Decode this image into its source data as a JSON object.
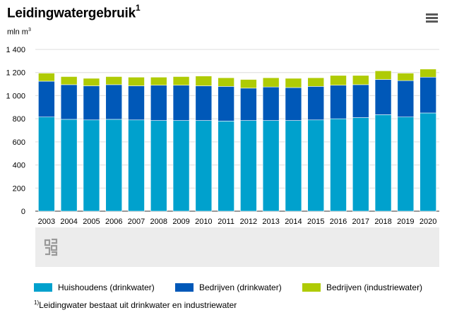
{
  "header": {
    "title": "Leidingwatergebruik",
    "title_sup": "1",
    "unit": "mln m",
    "unit_sup": "3"
  },
  "menu_icon": "hamburger-menu-icon",
  "logo_icon": "cbs-logo-icon",
  "legend": [
    {
      "label": "Huishoudens (drinkwater)",
      "color": "#00a1cd"
    },
    {
      "label": "Bedrijven (drinkwater)",
      "color": "#0058b8"
    },
    {
      "label": "Bedrijven (industriewater)",
      "color": "#afcb05"
    }
  ],
  "footnote": {
    "sup": "1)",
    "text": "Leidingwater bestaat uit drinkwater en industriewater"
  },
  "chart_data": {
    "type": "bar",
    "stacked": true,
    "title": "Leidingwatergebruik",
    "ylabel": "mln m3",
    "ylim": [
      0,
      1400
    ],
    "yticks": [
      "0",
      "200",
      "400",
      "600",
      "800",
      "1 000",
      "1 200",
      "1 400"
    ],
    "categories": [
      "2003",
      "2004",
      "2005",
      "2006",
      "2007",
      "2008",
      "2009",
      "2010",
      "2011",
      "2012",
      "2013",
      "2014",
      "2015",
      "2016",
      "2017",
      "2018",
      "2019",
      "2020"
    ],
    "series": [
      {
        "name": "Huishoudens (drinkwater)",
        "color": "#00a1cd",
        "values": [
          815,
          795,
          790,
          795,
          790,
          785,
          785,
          785,
          780,
          785,
          785,
          785,
          790,
          800,
          810,
          835,
          815,
          850
        ]
      },
      {
        "name": "Bedrijven (drinkwater)",
        "color": "#0058b8",
        "values": [
          310,
          300,
          295,
          300,
          295,
          305,
          305,
          300,
          300,
          280,
          290,
          285,
          290,
          290,
          285,
          305,
          315,
          310
        ]
      },
      {
        "name": "Bedrijven (industriewater)",
        "color": "#afcb05",
        "values": [
          70,
          70,
          65,
          70,
          75,
          70,
          75,
          85,
          75,
          75,
          80,
          80,
          75,
          85,
          80,
          75,
          65,
          70
        ]
      }
    ],
    "grid": true,
    "legend_position": "bottom"
  }
}
